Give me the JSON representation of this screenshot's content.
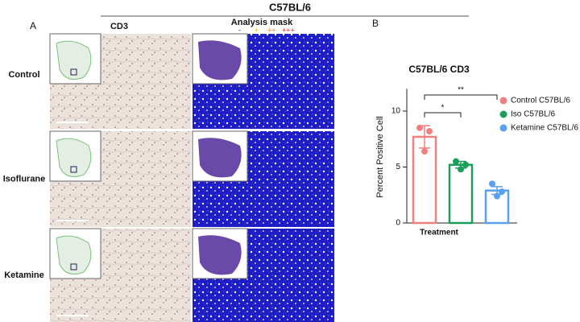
{
  "figure": {
    "header": "C57BL/6",
    "panel_b_label": "B",
    "panel_a": {
      "label": "A",
      "columns": [
        "CD3",
        "Analysis mask"
      ],
      "mask_legend": [
        "-",
        "+",
        "++",
        "+++"
      ],
      "rows": [
        "Control",
        "Isoflurane",
        "Ketamine"
      ]
    }
  },
  "chart_data": {
    "type": "bar",
    "title": "C57BL/6 CD3",
    "xlabel": "Treatment",
    "ylabel": "Percent Positive Cell",
    "ylim": [
      0,
      12
    ],
    "yticks": [
      0,
      5,
      10
    ],
    "series": [
      {
        "name": "Control C57BL/6",
        "color": "#f28080",
        "values": [
          7.7
        ],
        "errors": [
          1.0
        ],
        "points": [
          8.5,
          8.2,
          6.4
        ]
      },
      {
        "name": "Iso C57BL/6",
        "color": "#1a9e5a",
        "values": [
          5.2
        ],
        "errors": [
          0.3
        ],
        "points": [
          5.5,
          5.2,
          4.8
        ]
      },
      {
        "name": "Ketamine C57BL/6",
        "color": "#5aa0f0",
        "values": [
          2.9
        ],
        "errors": [
          0.35
        ],
        "points": [
          3.5,
          2.8,
          2.4
        ]
      }
    ],
    "annotations": [
      "**",
      "*"
    ]
  }
}
